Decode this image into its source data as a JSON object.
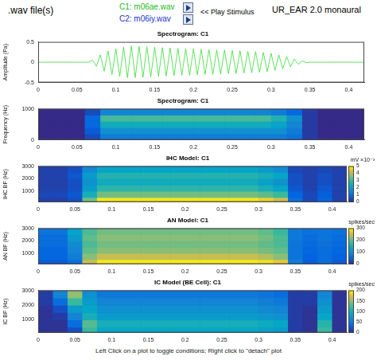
{
  "header": {
    "label": ".wav file(s)",
    "c1": "C1: m06ae.wav",
    "c2": "C2: m06iy.wav",
    "play": "<< Play Stimulus",
    "app": "UR_EAR 2.0 monaural"
  },
  "footer": "Left Click on a plot to toggle conditions; Right click to \"detach\" plot",
  "chart_data": [
    {
      "type": "line",
      "title": "Spectrogram: C1",
      "x_label": null,
      "y_label": "Amplitude (Pa)",
      "color": "#33dd33",
      "x": [
        0,
        0.005,
        0.01,
        0.015,
        0.02,
        0.025,
        0.03,
        0.035,
        0.04,
        0.045,
        0.05,
        0.055,
        0.06,
        0.065,
        0.07,
        0.075,
        0.08,
        0.085,
        0.09,
        0.095,
        0.1,
        0.105,
        0.11,
        0.115,
        0.12,
        0.125,
        0.13,
        0.135,
        0.14,
        0.145,
        0.15,
        0.155,
        0.16,
        0.165,
        0.17,
        0.175,
        0.18,
        0.185,
        0.19,
        0.195,
        0.2,
        0.205,
        0.21,
        0.215,
        0.22,
        0.225,
        0.23,
        0.235,
        0.24,
        0.245,
        0.25,
        0.255,
        0.26,
        0.265,
        0.27,
        0.275,
        0.28,
        0.285,
        0.29,
        0.295,
        0.3,
        0.305,
        0.31,
        0.315,
        0.32,
        0.325,
        0.33,
        0.335,
        0.34,
        0.345,
        0.35,
        0.355,
        0.36,
        0.365,
        0.37,
        0.375,
        0.38,
        0.385,
        0.39,
        0.395,
        0.4,
        0.405,
        0.41,
        0.415,
        0.42
      ],
      "values": [
        0,
        0,
        0,
        0,
        0,
        0,
        0,
        0,
        0,
        0,
        0,
        0,
        0,
        0,
        0.05,
        -0.1,
        0.18,
        -0.22,
        0.28,
        -0.3,
        0.33,
        -0.35,
        0.37,
        -0.38,
        0.4,
        -0.38,
        0.39,
        -0.37,
        0.38,
        -0.36,
        0.37,
        -0.35,
        0.36,
        -0.34,
        0.35,
        -0.33,
        0.34,
        -0.32,
        0.33,
        -0.32,
        0.33,
        -0.31,
        0.32,
        -0.3,
        0.31,
        -0.3,
        0.3,
        -0.29,
        0.3,
        -0.28,
        0.29,
        -0.28,
        0.28,
        -0.27,
        0.27,
        -0.26,
        0.26,
        -0.25,
        0.24,
        -0.23,
        0.22,
        -0.2,
        0.18,
        -0.16,
        0.14,
        -0.11,
        0.08,
        -0.05,
        0.03,
        -0.01,
        0,
        0,
        0,
        0,
        0,
        0,
        0,
        0,
        0,
        0,
        0,
        0,
        0,
        0,
        0
      ],
      "xlim": [
        0,
        0.42
      ],
      "xticks": [
        0,
        0.05,
        0.1,
        0.15,
        0.2,
        0.25,
        0.3,
        0.35,
        0.4
      ],
      "ylim": [
        -0.5,
        0.5
      ],
      "yticks": [
        -0.5,
        0,
        0.5
      ],
      "grid": false
    },
    {
      "type": "heatmap",
      "title": "Spectrogram: C1",
      "y_label": "Frequency (Hz)",
      "xlim": [
        0,
        0.42
      ],
      "xticks": [
        0,
        0.05,
        0.1,
        0.15,
        0.2,
        0.25,
        0.3,
        0.35,
        0.4
      ],
      "ylim": [
        0,
        1000
      ],
      "yticks": [
        0,
        1000
      ],
      "grid": false,
      "x_bins": [
        0,
        0.02,
        0.04,
        0.06,
        0.08,
        0.1,
        0.12,
        0.14,
        0.16,
        0.18,
        0.2,
        0.22,
        0.24,
        0.26,
        0.28,
        0.3,
        0.32,
        0.34,
        0.36,
        0.38,
        0.4,
        0.42
      ],
      "y_bins": [
        0,
        200,
        400,
        600,
        800,
        1000
      ],
      "cells": [
        [
          0,
          0,
          0,
          0.1,
          0.3,
          0.3,
          0.3,
          0.3,
          0.3,
          0.3,
          0.3,
          0.3,
          0.3,
          0.3,
          0.3,
          0.3,
          0.25,
          0.05,
          0,
          0,
          0
        ],
        [
          0,
          0,
          0,
          0.15,
          0.4,
          0.4,
          0.4,
          0.4,
          0.4,
          0.4,
          0.4,
          0.4,
          0.4,
          0.4,
          0.4,
          0.4,
          0.3,
          0.05,
          0,
          0,
          0
        ],
        [
          0,
          0,
          0,
          0.2,
          0.55,
          0.55,
          0.55,
          0.55,
          0.55,
          0.55,
          0.55,
          0.55,
          0.55,
          0.55,
          0.55,
          0.5,
          0.35,
          0.05,
          0,
          0,
          0
        ],
        [
          0,
          0,
          0,
          0.2,
          0.7,
          0.7,
          0.7,
          0.7,
          0.7,
          0.7,
          0.7,
          0.7,
          0.7,
          0.7,
          0.7,
          0.6,
          0.4,
          0.05,
          0,
          0,
          0
        ],
        [
          0,
          0,
          0,
          0.1,
          0.35,
          0.35,
          0.35,
          0.35,
          0.35,
          0.35,
          0.35,
          0.35,
          0.35,
          0.35,
          0.35,
          0.3,
          0.2,
          0.05,
          0,
          0,
          0
        ]
      ]
    },
    {
      "type": "heatmap",
      "title": "IHC Model: C1",
      "y_label": "IHC BF (Hz)",
      "xlim": [
        0,
        0.42
      ],
      "xticks": [
        0,
        0.05,
        0.1,
        0.15,
        0.2,
        0.25,
        0.3,
        0.35,
        0.4
      ],
      "ylim": [
        125,
        3000
      ],
      "yticks": [
        1000,
        2000,
        3000
      ],
      "grid": false,
      "x_bins": [
        0,
        0.02,
        0.04,
        0.06,
        0.08,
        0.1,
        0.12,
        0.14,
        0.16,
        0.18,
        0.2,
        0.22,
        0.24,
        0.26,
        0.28,
        0.3,
        0.32,
        0.34,
        0.36,
        0.38,
        0.4,
        0.42
      ],
      "y_bins": [
        125,
        500,
        1000,
        1500,
        2000,
        2500,
        3000
      ],
      "cells": [
        [
          0.3,
          0.3,
          0.5,
          3.5,
          4.8,
          4.8,
          4.8,
          4.8,
          4.8,
          4.8,
          4.8,
          4.8,
          4.8,
          4.8,
          4.8,
          4.6,
          4.2,
          1,
          0.4,
          0.8,
          0.3
        ],
        [
          0.4,
          0.4,
          0.6,
          2.5,
          3.5,
          3.5,
          3.5,
          3.5,
          3.5,
          3.5,
          3.5,
          3.5,
          3.5,
          3.5,
          3.5,
          3.3,
          3,
          0.8,
          0.4,
          0.7,
          0.3
        ],
        [
          0.3,
          0.3,
          0.5,
          2,
          2.8,
          2.8,
          2.8,
          2.8,
          2.8,
          2.8,
          2.8,
          2.8,
          2.8,
          2.8,
          2.8,
          2.5,
          2.2,
          0.6,
          0.3,
          0.6,
          0.3
        ],
        [
          0.3,
          0.3,
          0.5,
          1.8,
          2.4,
          2.4,
          2.4,
          2.4,
          2.4,
          2.4,
          2.4,
          2.4,
          2.4,
          2.4,
          2.4,
          2.1,
          1.8,
          0.5,
          0.3,
          0.5,
          0.3
        ],
        [
          0.3,
          0.3,
          0.6,
          2,
          2.7,
          2.7,
          2.7,
          2.7,
          2.7,
          2.7,
          2.7,
          2.7,
          2.7,
          2.7,
          2.7,
          2.5,
          2.2,
          0.5,
          0.3,
          0.5,
          0.3
        ],
        [
          0.3,
          0.3,
          0.5,
          1.6,
          2.2,
          2.2,
          2.2,
          2.2,
          2.2,
          2.2,
          2.2,
          2.2,
          2.2,
          2.2,
          2.2,
          2,
          1.7,
          0.4,
          0.3,
          0.4,
          0.3
        ]
      ],
      "colorbar": {
        "label": "mV ×10⁻³",
        "range": [
          0,
          5
        ],
        "ticks": [
          0,
          1,
          2,
          3,
          4,
          5
        ]
      }
    },
    {
      "type": "heatmap",
      "title": "AN Model: C1",
      "y_label": "AN BF (Hz)",
      "xlim": [
        0,
        0.42
      ],
      "xticks": [
        0,
        0.05,
        0.1,
        0.15,
        0.2,
        0.25,
        0.3,
        0.35,
        0.4
      ],
      "ylim": [
        125,
        3000
      ],
      "yticks": [
        1000,
        2000,
        3000
      ],
      "grid": false,
      "x_bins": [
        0,
        0.02,
        0.04,
        0.06,
        0.08,
        0.1,
        0.12,
        0.14,
        0.16,
        0.18,
        0.2,
        0.22,
        0.24,
        0.26,
        0.28,
        0.3,
        0.32,
        0.34,
        0.36,
        0.38,
        0.4,
        0.42
      ],
      "y_bins": [
        125,
        500,
        1000,
        1500,
        2000,
        2500,
        3000
      ],
      "cells": [
        [
          40,
          40,
          60,
          250,
          290,
          290,
          290,
          290,
          290,
          290,
          290,
          290,
          290,
          290,
          290,
          285,
          270,
          80,
          40,
          60,
          40
        ],
        [
          50,
          50,
          80,
          220,
          250,
          250,
          250,
          250,
          250,
          250,
          250,
          250,
          250,
          250,
          250,
          240,
          220,
          70,
          45,
          60,
          45
        ],
        [
          50,
          50,
          90,
          200,
          220,
          220,
          220,
          220,
          220,
          220,
          220,
          220,
          220,
          220,
          220,
          210,
          200,
          70,
          50,
          60,
          50
        ],
        [
          60,
          60,
          100,
          190,
          210,
          210,
          210,
          210,
          210,
          210,
          210,
          210,
          210,
          210,
          210,
          200,
          190,
          70,
          55,
          65,
          55
        ],
        [
          60,
          60,
          120,
          200,
          220,
          220,
          220,
          220,
          220,
          220,
          220,
          220,
          220,
          220,
          220,
          210,
          190,
          75,
          60,
          70,
          60
        ],
        [
          70,
          70,
          130,
          190,
          210,
          210,
          210,
          210,
          210,
          210,
          210,
          210,
          210,
          210,
          210,
          200,
          180,
          75,
          65,
          70,
          65
        ]
      ],
      "colorbar": {
        "label": "spikes/sec",
        "range": [
          0,
          300
        ],
        "ticks": [
          0,
          100,
          200,
          300
        ]
      }
    },
    {
      "type": "heatmap",
      "title": "IC Model (BE Cell): C1",
      "y_label": "IC BF (Hz)",
      "xlim": [
        0,
        0.42
      ],
      "xticks": [
        0,
        0.05,
        0.1,
        0.15,
        0.2,
        0.25,
        0.3,
        0.35,
        0.4
      ],
      "ylim": [
        125,
        3000
      ],
      "yticks": [
        1000,
        2000,
        3000
      ],
      "grid": false,
      "x_bins": [
        0,
        0.02,
        0.04,
        0.06,
        0.08,
        0.1,
        0.12,
        0.14,
        0.16,
        0.18,
        0.2,
        0.22,
        0.24,
        0.26,
        0.28,
        0.3,
        0.32,
        0.34,
        0.36,
        0.38,
        0.4,
        0.42
      ],
      "y_bins": [
        125,
        500,
        1000,
        1500,
        2000,
        2500,
        3000
      ],
      "cells": [
        [
          5,
          5,
          20,
          120,
          90,
          90,
          90,
          90,
          90,
          90,
          90,
          90,
          90,
          90,
          90,
          85,
          80,
          10,
          5,
          120,
          5
        ],
        [
          5,
          5,
          40,
          130,
          100,
          100,
          100,
          100,
          100,
          100,
          100,
          100,
          100,
          100,
          100,
          95,
          90,
          10,
          5,
          110,
          5
        ],
        [
          5,
          10,
          60,
          100,
          80,
          80,
          80,
          80,
          80,
          80,
          80,
          80,
          80,
          80,
          80,
          75,
          70,
          10,
          5,
          90,
          5
        ],
        [
          5,
          20,
          80,
          90,
          70,
          70,
          70,
          70,
          70,
          70,
          70,
          70,
          70,
          70,
          70,
          65,
          60,
          10,
          5,
          80,
          5
        ],
        [
          10,
          40,
          120,
          80,
          60,
          60,
          60,
          60,
          60,
          60,
          60,
          60,
          60,
          60,
          60,
          55,
          50,
          10,
          10,
          70,
          5
        ],
        [
          10,
          60,
          150,
          70,
          50,
          50,
          50,
          50,
          50,
          50,
          50,
          50,
          50,
          50,
          50,
          45,
          40,
          10,
          10,
          60,
          5
        ]
      ],
      "colorbar": {
        "label": "spikes/sec",
        "range": [
          0,
          200
        ],
        "ticks": [
          0,
          50,
          100,
          150,
          200
        ]
      }
    }
  ]
}
